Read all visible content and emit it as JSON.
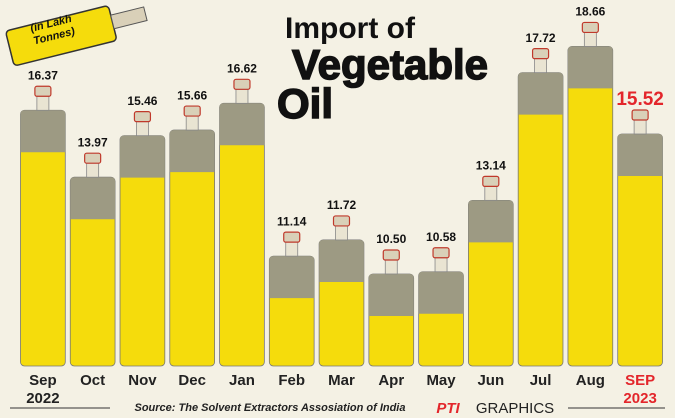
{
  "chart_data": {
    "type": "bottle-bar",
    "title": [
      "Import of",
      "Vegetable",
      "Oil"
    ],
    "unit_label": "(in Lakh Tonnes)",
    "categories": [
      "Sep 2022",
      "Oct",
      "Nov",
      "Dec",
      "Jan",
      "Feb",
      "Mar",
      "Apr",
      "May",
      "Jun",
      "Jul",
      "Aug",
      "SEP 2023"
    ],
    "values": [
      16.37,
      13.97,
      15.46,
      15.66,
      16.62,
      11.14,
      11.72,
      10.5,
      10.58,
      13.14,
      17.72,
      18.66,
      15.52
    ],
    "value_labels": [
      "16.37",
      "13.97",
      "15.46",
      "15.66",
      "16.62",
      "11.14",
      "11.72",
      "10.50",
      "10.58",
      "13.14",
      "17.72",
      "18.66",
      "15.52"
    ],
    "color": "#f5dc0c",
    "ylim": [
      7.2,
      19.5
    ],
    "highlight_index": 12,
    "highlight_color": "#e3262b",
    "source": "Source: The Solvent Extractors Assosiation of India",
    "credit_logo": "PTI",
    "credit": "GRAPHICS"
  }
}
